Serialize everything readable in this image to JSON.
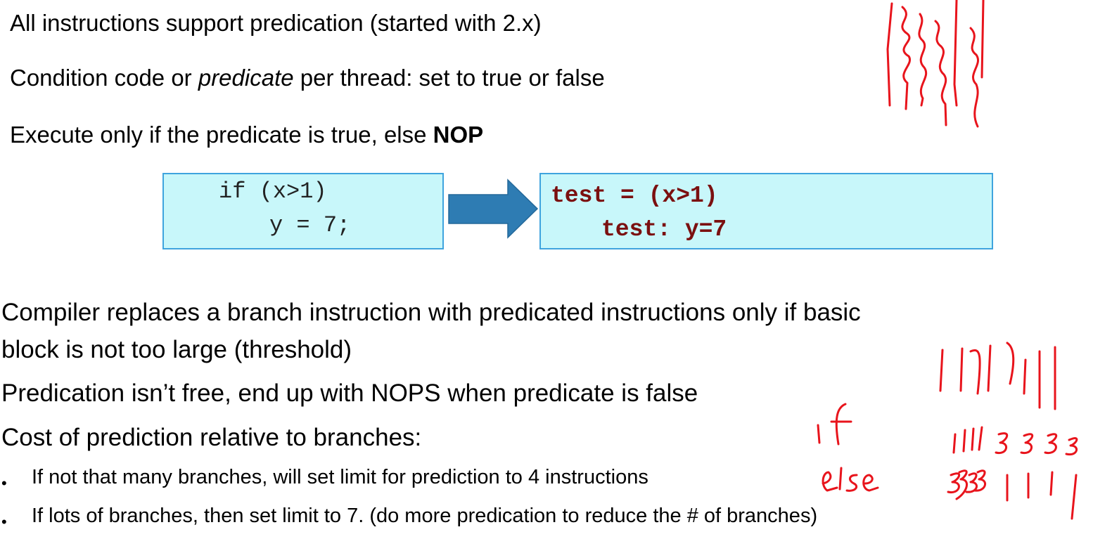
{
  "slide": {
    "line1": "All instructions support predication (started with 2.x)",
    "line2_pre": "Condition code or ",
    "line2_em": "predicate",
    "line2_post": " per thread:  set to true or false",
    "line3_pre": "Execute only if the predicate is true, else ",
    "line3_bold": "NOP",
    "code_before": [
      "if (x>1)",
      "y = 7;"
    ],
    "code_after": [
      "test = (x>1)",
      "test: y=7"
    ],
    "para1_a": "Compiler replaces a branch instruction with predicated instructions only if basic",
    "para1_b": "block is not too large (threshold)",
    "para2": "Predication isn’t free, end up with NOPS when predicate is false",
    "para3": "Cost of prediction relative to branches:",
    "bullet_char": "•",
    "sub1": "If not that many branches, will set limit for prediction to 4 instructions",
    "sub2": "If lots of branches, then set limit to 7. (do more predication to reduce the # of branches)"
  },
  "annotations": {
    "note_if": "if",
    "note_else": "else",
    "ink_color": "#e8141c"
  },
  "colors": {
    "code_box_bg": "#c8f7fa",
    "code_box_border": "#3fa4de",
    "arrow": "#2e7cb3",
    "code_after_text": "#7b1010"
  }
}
